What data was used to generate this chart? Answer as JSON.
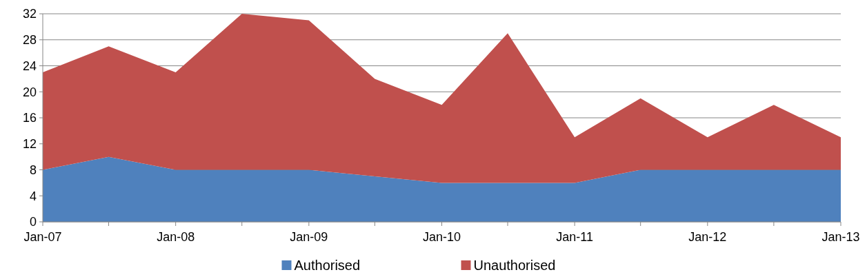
{
  "chart_data": {
    "type": "area",
    "stacked": true,
    "x": [
      "2007-01",
      "2007-07",
      "2008-01",
      "2008-07",
      "2009-01",
      "2009-07",
      "2010-01",
      "2010-07",
      "2011-01",
      "2011-07",
      "2012-01",
      "2012-07",
      "2013-01"
    ],
    "series": [
      {
        "name": "Authorised",
        "color": "#4f81bd",
        "values": [
          8,
          10,
          8,
          8,
          8,
          7,
          6,
          6,
          6,
          8,
          8,
          8,
          8
        ]
      },
      {
        "name": "Unauthorised",
        "color": "#c0504d",
        "values": [
          15,
          17,
          15,
          24,
          23,
          15,
          12,
          23,
          7,
          11,
          5,
          10,
          5
        ]
      }
    ],
    "xlim": [
      "2007-01",
      "2013-01"
    ],
    "xticks": [
      {
        "value": "2007-01",
        "label": "Jan-07"
      },
      {
        "value": "2007-07",
        "label": null
      },
      {
        "value": "2008-01",
        "label": "Jan-08"
      },
      {
        "value": "2008-07",
        "label": null
      },
      {
        "value": "2009-01",
        "label": "Jan-09"
      },
      {
        "value": "2009-07",
        "label": null
      },
      {
        "value": "2010-01",
        "label": "Jan-10"
      },
      {
        "value": "2010-07",
        "label": null
      },
      {
        "value": "2011-01",
        "label": "Jan-11"
      },
      {
        "value": "2011-07",
        "label": null
      },
      {
        "value": "2012-01",
        "label": "Jan-12"
      },
      {
        "value": "2012-07",
        "label": null
      },
      {
        "value": "2013-01",
        "label": "Jan-13"
      }
    ],
    "ylim": [
      0,
      32
    ],
    "yticks": [
      0,
      4,
      8,
      12,
      16,
      20,
      24,
      28,
      32
    ],
    "grid": "y",
    "legend": "bottom"
  }
}
